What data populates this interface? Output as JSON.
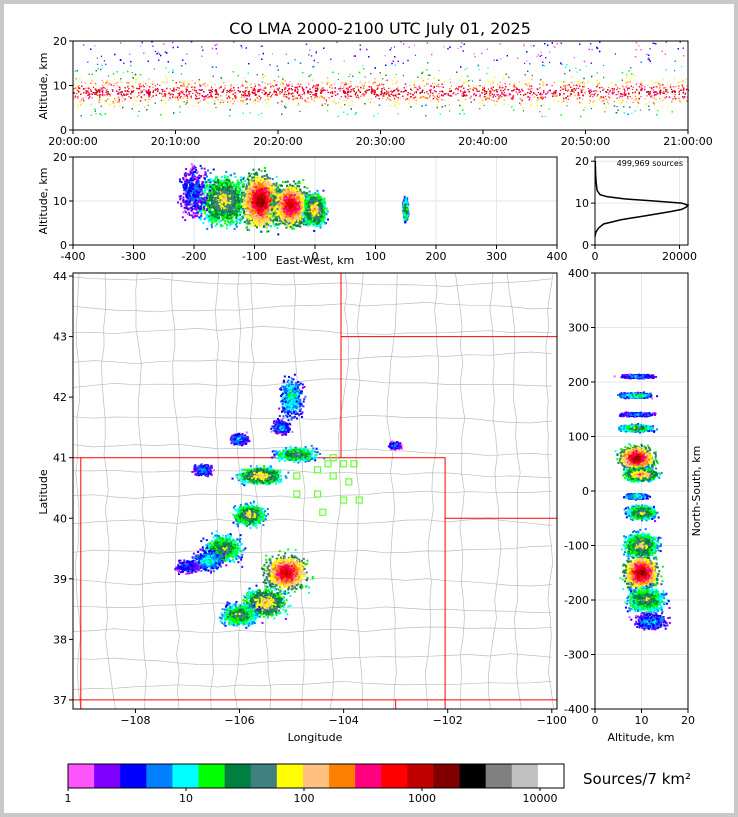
{
  "title": "CO LMA 2000-2100 UTC July 01, 2025",
  "colorbar": {
    "label": "Sources/7 km²",
    "ticks": [
      "1",
      "10",
      "100",
      "1000",
      "10000"
    ],
    "colors": [
      "#ff55ff",
      "#8000ff",
      "#0000ff",
      "#0080ff",
      "#00ffff",
      "#00ff00",
      "#008040",
      "#408080",
      "#ffff00",
      "#ffc080",
      "#ff8000",
      "#ff0080",
      "#ff0000",
      "#c00000",
      "#800000",
      "#000000",
      "#808080",
      "#c0c0c0",
      "#ffffff"
    ]
  },
  "chart_data": [
    {
      "type": "heatmap",
      "name": "altitude-time",
      "xlabel": "",
      "ylabel": "Altitude, km",
      "x_ticks": [
        "20:00:00",
        "20:10:00",
        "20:20:00",
        "20:30:00",
        "20:40:00",
        "20:50:00",
        "21:00:00"
      ],
      "y_ticks": [
        0,
        10,
        20
      ],
      "xlim": [
        "20:00:00",
        "21:00:00"
      ],
      "ylim": [
        0,
        20
      ]
    },
    {
      "type": "heatmap",
      "name": "altitude-eastwest",
      "xlabel": "East-West, km",
      "ylabel": "Altitude, km",
      "x_ticks": [
        -400,
        -300,
        -200,
        -100,
        0,
        100,
        200,
        300,
        400
      ],
      "y_ticks": [
        0,
        10,
        20
      ],
      "xlim": [
        -400,
        400
      ],
      "ylim": [
        0,
        20
      ]
    },
    {
      "type": "line",
      "name": "altitude-histogram",
      "annotation": "499,969 sources",
      "x_ticks": [
        0,
        20000
      ],
      "y_ticks": [
        0,
        10,
        20
      ],
      "xlim": [
        0,
        22000
      ],
      "ylim": [
        0,
        21
      ],
      "x": [
        0,
        200,
        800,
        2000,
        4000,
        6000,
        9000,
        12000,
        15000,
        18000,
        20500,
        21500,
        22000,
        20500,
        14000,
        7000,
        3000,
        1200,
        500,
        250,
        150,
        80
      ],
      "y": [
        2,
        3,
        4,
        5,
        5.5,
        6,
        6.5,
        7,
        7.5,
        8,
        8.5,
        9,
        9.5,
        10,
        10.5,
        11,
        11.5,
        12,
        13,
        15,
        17,
        20
      ]
    },
    {
      "type": "heatmap",
      "name": "plan-view-map",
      "xlabel": "Longitude",
      "ylabel": "Latitude",
      "x_ticks": [
        "−108",
        "−106",
        "−104",
        "−102",
        "−100"
      ],
      "y_ticks": [
        "37",
        "38",
        "39",
        "40",
        "41",
        "42",
        "43",
        "44"
      ],
      "xlim": [
        -109.2,
        -99.9
      ],
      "ylim": [
        36.85,
        44.05
      ],
      "stations_lonlat": [
        [
          -104.2,
          41.0
        ],
        [
          -104.5,
          40.8
        ],
        [
          -104.0,
          40.9
        ],
        [
          -103.8,
          40.9
        ],
        [
          -104.3,
          40.9
        ],
        [
          -104.9,
          40.7
        ],
        [
          -104.2,
          40.7
        ],
        [
          -103.9,
          40.6
        ],
        [
          -104.9,
          40.4
        ],
        [
          -104.5,
          40.4
        ],
        [
          -104.0,
          40.3
        ],
        [
          -103.7,
          40.3
        ],
        [
          -104.4,
          40.1
        ]
      ]
    },
    {
      "type": "heatmap",
      "name": "altitude-northsouth",
      "xlabel": "Altitude, km",
      "ylabel": "North-South, km",
      "x_ticks": [
        0,
        10,
        20
      ],
      "y_ticks": [
        400,
        300,
        200,
        100,
        0,
        -100,
        -200,
        -300,
        -400
      ],
      "xlim": [
        0,
        20
      ],
      "ylim": [
        -400,
        400
      ]
    }
  ]
}
